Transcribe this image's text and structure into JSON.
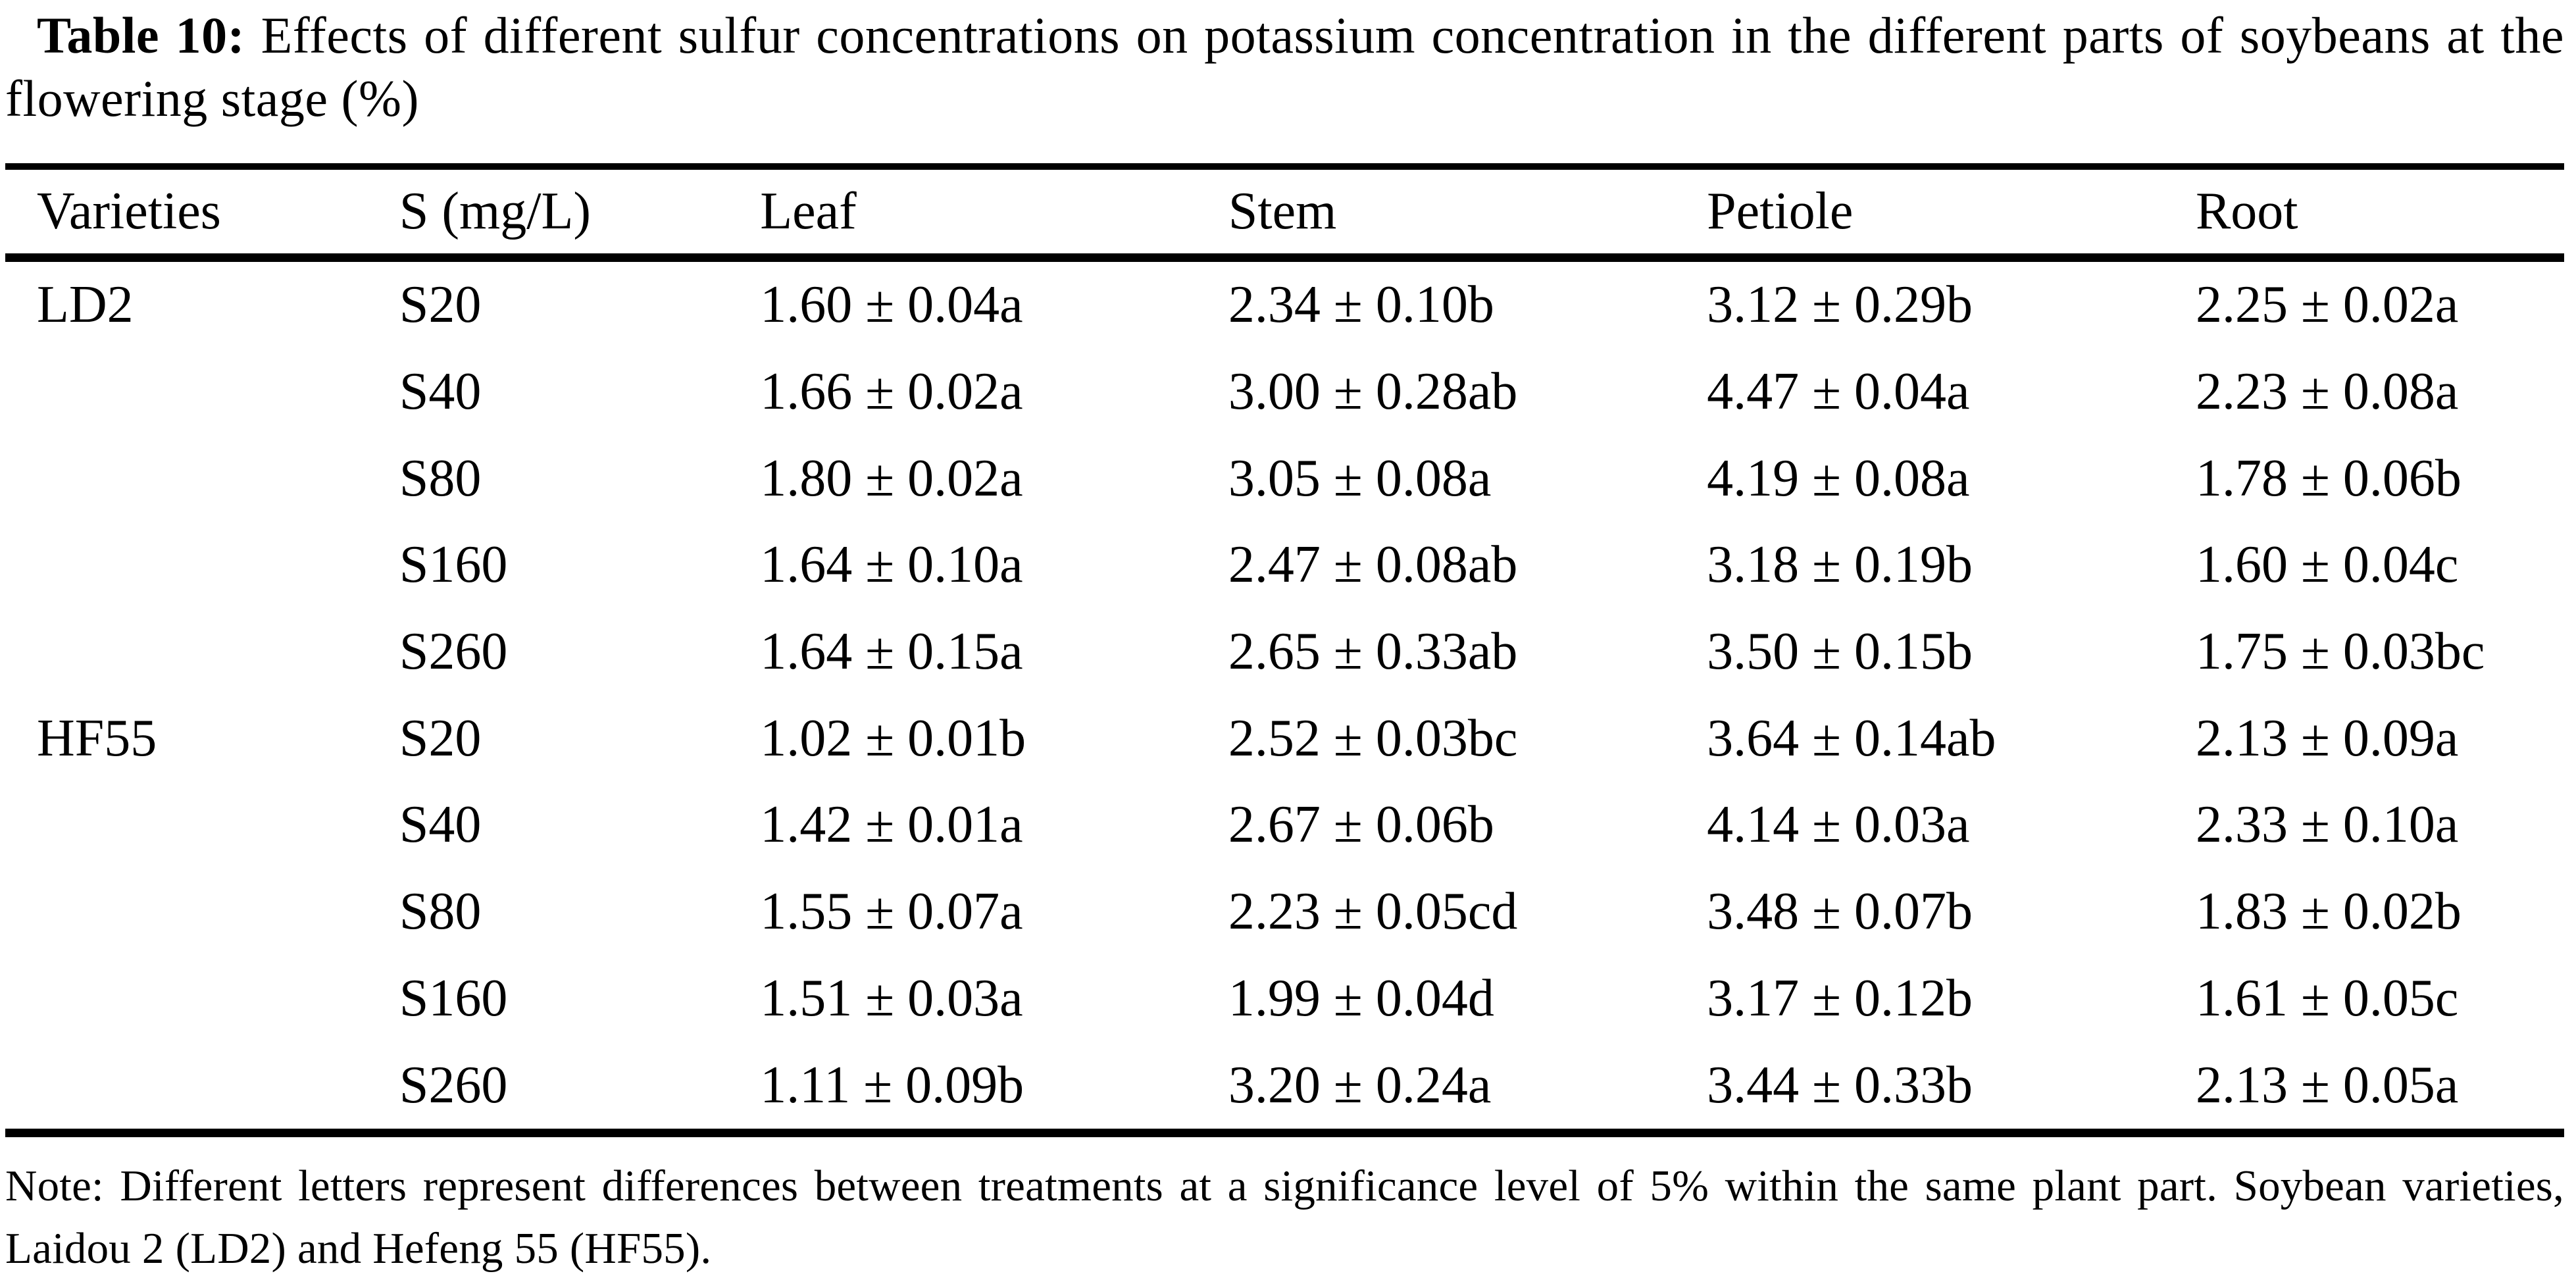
{
  "caption": {
    "label": "Table 10:",
    "text": " Effects of different sulfur concentrations on potassium concentration in the different parts of soybeans at the flowering stage (%)"
  },
  "table": {
    "columns": [
      "Varieties",
      "S (mg/L)",
      "Leaf",
      "Stem",
      "Petiole",
      "Root"
    ],
    "rows": [
      {
        "variety": "LD2",
        "s": "S20",
        "leaf": "1.60 ± 0.04a",
        "stem": "2.34 ± 0.10b",
        "petiole": "3.12 ± 0.29b",
        "root": "2.25 ± 0.02a"
      },
      {
        "s": "S40",
        "leaf": "1.66 ± 0.02a",
        "stem": "3.00 ± 0.28ab",
        "petiole": "4.47 ± 0.04a",
        "root": "2.23 ± 0.08a"
      },
      {
        "s": "S80",
        "leaf": "1.80 ± 0.02a",
        "stem": "3.05 ± 0.08a",
        "petiole": "4.19 ± 0.08a",
        "root": "1.78 ± 0.06b"
      },
      {
        "s": "S160",
        "leaf": "1.64 ± 0.10a",
        "stem": "2.47 ± 0.08ab",
        "petiole": "3.18 ± 0.19b",
        "root": "1.60 ± 0.04c"
      },
      {
        "s": "S260",
        "leaf": "1.64 ± 0.15a",
        "stem": "2.65 ± 0.33ab",
        "petiole": "3.50 ± 0.15b",
        "root": "1.75 ± 0.03bc"
      },
      {
        "variety": "HF55",
        "s": "S20",
        "leaf": "1.02 ± 0.01b",
        "stem": "2.52 ± 0.03bc",
        "petiole": "3.64 ± 0.14ab",
        "root": "2.13 ± 0.09a"
      },
      {
        "s": "S40",
        "leaf": "1.42 ± 0.01a",
        "stem": "2.67 ± 0.06b",
        "petiole": "4.14 ± 0.03a",
        "root": "2.33 ± 0.10a"
      },
      {
        "s": "S80",
        "leaf": "1.55 ± 0.07a",
        "stem": "2.23 ± 0.05cd",
        "petiole": "3.48 ± 0.07b",
        "root": "1.83 ± 0.02b"
      },
      {
        "s": "S160",
        "leaf": "1.51 ± 0.03a",
        "stem": "1.99 ± 0.04d",
        "petiole": "3.17 ± 0.12b",
        "root": "1.61 ± 0.05c"
      },
      {
        "s": "S260",
        "leaf": "1.11 ± 0.09b",
        "stem": "3.20 ± 0.24a",
        "petiole": "3.44 ± 0.33b",
        "root": "2.13 ± 0.05a"
      }
    ]
  },
  "note": "Note: Different letters represent differences between treatments at a significance level of 5% within the same plant part. Soybean varieties, Laidou 2 (LD2) and Hefeng 55 (HF55)."
}
